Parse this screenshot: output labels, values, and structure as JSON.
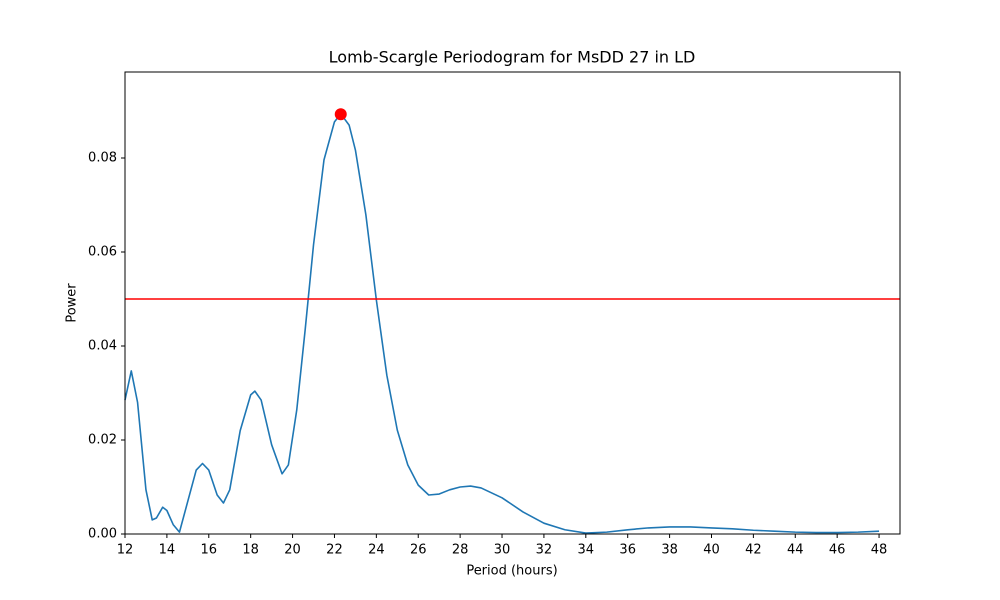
{
  "chart_data": {
    "type": "line",
    "title": "Lomb-Scargle Periodogram for MsDD 27 in LD",
    "xlabel": "Period (hours)",
    "ylabel": "Power",
    "color": "#1f77b4",
    "x": [
      12,
      12.3,
      12.6,
      13,
      13.3,
      13.5,
      13.8,
      14,
      14.3,
      14.6,
      15,
      15.4,
      15.7,
      16,
      16.4,
      16.7,
      17,
      17.5,
      18,
      18.2,
      18.5,
      19,
      19.5,
      19.8,
      20.2,
      20.6,
      21,
      21.5,
      22,
      22.3,
      22.7,
      23,
      23.5,
      24,
      24.5,
      25,
      25.5,
      26,
      26.5,
      27,
      27.5,
      28,
      28.5,
      29,
      30,
      31,
      32,
      33,
      34,
      35,
      36,
      37,
      38,
      39,
      40,
      41,
      42,
      43,
      44,
      45,
      46,
      47,
      48
    ],
    "values": [
      0.0285,
      0.0347,
      0.028,
      0.0094,
      0.003,
      0.0034,
      0.0057,
      0.005,
      0.002,
      0.0004,
      0.007,
      0.0136,
      0.015,
      0.0136,
      0.0083,
      0.0066,
      0.0094,
      0.022,
      0.0296,
      0.0304,
      0.0285,
      0.019,
      0.0128,
      0.0147,
      0.0264,
      0.0434,
      0.0615,
      0.0796,
      0.0877,
      0.0894,
      0.087,
      0.0817,
      0.0679,
      0.0498,
      0.0338,
      0.0221,
      0.0147,
      0.0104,
      0.0083,
      0.0085,
      0.0094,
      0.01,
      0.0102,
      0.0098,
      0.0077,
      0.0047,
      0.0023,
      0.0009,
      0.0002,
      0.0004,
      0.0009,
      0.0013,
      0.0015,
      0.0015,
      0.0013,
      0.0011,
      0.0008,
      0.0006,
      0.0004,
      0.0003,
      0.0003,
      0.0004,
      0.0006
    ],
    "threshold": {
      "value": 0.05,
      "color": "#ff0000"
    },
    "peak": {
      "x": 22.3,
      "y": 0.0893,
      "color": "#ff0000"
    },
    "xlim": [
      12,
      49
    ],
    "ylim": [
      0,
      0.0983
    ],
    "xticks": [
      12,
      14,
      16,
      18,
      20,
      22,
      24,
      26,
      28,
      30,
      32,
      34,
      36,
      38,
      40,
      42,
      44,
      46,
      48
    ],
    "yticks": [
      {
        "value": 0,
        "label": "0.00"
      },
      0.02,
      0.04,
      0.06,
      0.08
    ]
  }
}
